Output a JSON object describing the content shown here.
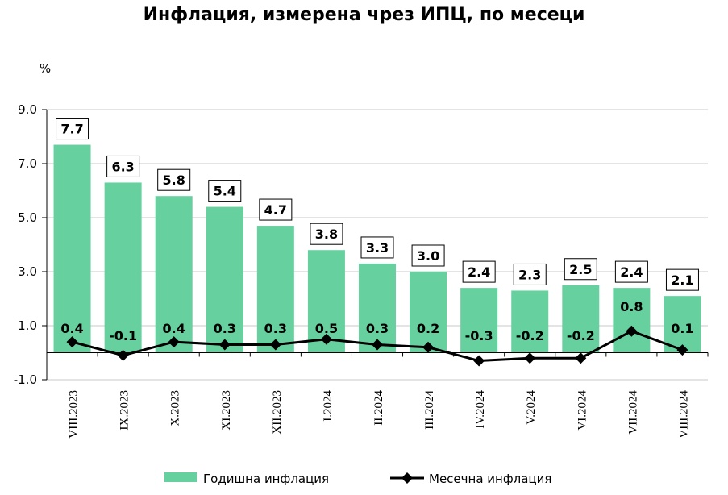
{
  "chart_data": {
    "type": "bar",
    "title": "Инфлация, измерена чрез ИПЦ, по месеци",
    "ylabel": "%",
    "ylim": [
      -1.0,
      9.0
    ],
    "yticks": [
      "9.0",
      "7.0",
      "5.0",
      "3.0",
      "1.0",
      "-1.0"
    ],
    "grid": true,
    "legend_position": "bottom",
    "categories": [
      "VIII.2023",
      "IX.2023",
      "X.2023",
      "XI.2023",
      "XII.2023",
      "I.2024",
      "II.2024",
      "III.2024",
      "IV.2024",
      "V.2024",
      "VI.2024",
      "VII.2024",
      "VIII.2024"
    ],
    "series": [
      {
        "name": "Годишна инфлация",
        "type": "bar",
        "color": "#66D19E",
        "values": [
          7.7,
          6.3,
          5.8,
          5.4,
          4.7,
          3.8,
          3.3,
          3.0,
          2.4,
          2.3,
          2.5,
          2.4,
          2.1
        ],
        "labels": [
          "7.7",
          "6.3",
          "5.8",
          "5.4",
          "4.7",
          "3.8",
          "3.3",
          "3.0",
          "2.4",
          "2.3",
          "2.5",
          "2.4",
          "2.1"
        ]
      },
      {
        "name": "Месечна инфлация",
        "type": "line",
        "color": "#000000",
        "values": [
          0.4,
          -0.1,
          0.4,
          0.3,
          0.3,
          0.5,
          0.3,
          0.2,
          -0.3,
          -0.2,
          -0.2,
          0.8,
          0.1
        ],
        "labels": [
          "0.4",
          "-0.1",
          "0.4",
          "0.3",
          "0.3",
          "0.5",
          "0.3",
          "0.2",
          "-0.3",
          "-0.2",
          "-0.2",
          "0.8",
          "0.1"
        ]
      }
    ]
  }
}
